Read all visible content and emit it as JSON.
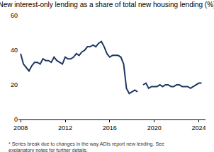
{
  "chart_data": {
    "type": "line",
    "title": "New interest-only lending as a share of total new housing lending (%)",
    "footnote": [
      "* Series break due to changes in the way ADIs report new lending. See",
      "explanatory notes for further details."
    ],
    "x": [
      2008.0,
      2008.25,
      2008.5,
      2008.75,
      2009.0,
      2009.25,
      2009.5,
      2009.75,
      2010.0,
      2010.25,
      2010.5,
      2010.75,
      2011.0,
      2011.25,
      2011.5,
      2011.75,
      2012.0,
      2012.25,
      2012.5,
      2012.75,
      2013.0,
      2013.25,
      2013.5,
      2013.75,
      2014.0,
      2014.25,
      2014.5,
      2014.75,
      2015.0,
      2015.25,
      2015.5,
      2015.75,
      2016.0,
      2016.25,
      2016.5,
      2016.75,
      2017.0,
      2017.25,
      2017.5,
      2017.75,
      2018.0,
      2018.25,
      2018.5,
      2018.75,
      2019.0,
      2019.25,
      2019.5,
      2019.75,
      2020.0,
      2020.25,
      2020.5,
      2020.75,
      2021.0,
      2021.25,
      2021.5,
      2021.75,
      2022.0,
      2022.25,
      2022.5,
      2022.75,
      2023.0,
      2023.25,
      2023.5,
      2023.75,
      2024.0,
      2024.25
    ],
    "series": [
      {
        "color": "#1f3864",
        "values": [
          38,
          32,
          30,
          28,
          31,
          33,
          33,
          32,
          35,
          34,
          34,
          33,
          36,
          34,
          33,
          32,
          36,
          35,
          35,
          36,
          38,
          37,
          39,
          40,
          42,
          42,
          43,
          42,
          44,
          45,
          42,
          38,
          36,
          37,
          37,
          37,
          36,
          32,
          18,
          15,
          16,
          17,
          16,
          null,
          20,
          21,
          18,
          19,
          19,
          19,
          20,
          19,
          20,
          20,
          19,
          19,
          20,
          20,
          19,
          19,
          19,
          18,
          19,
          20,
          21,
          21
        ]
      }
    ],
    "xlim": [
      2007.8,
      2024.6
    ],
    "xticks": [
      2008,
      2012,
      2016,
      2020,
      2024
    ],
    "ylim": [
      0,
      60
    ],
    "yticks": [
      0,
      20,
      40,
      60
    ],
    "grid": false
  }
}
